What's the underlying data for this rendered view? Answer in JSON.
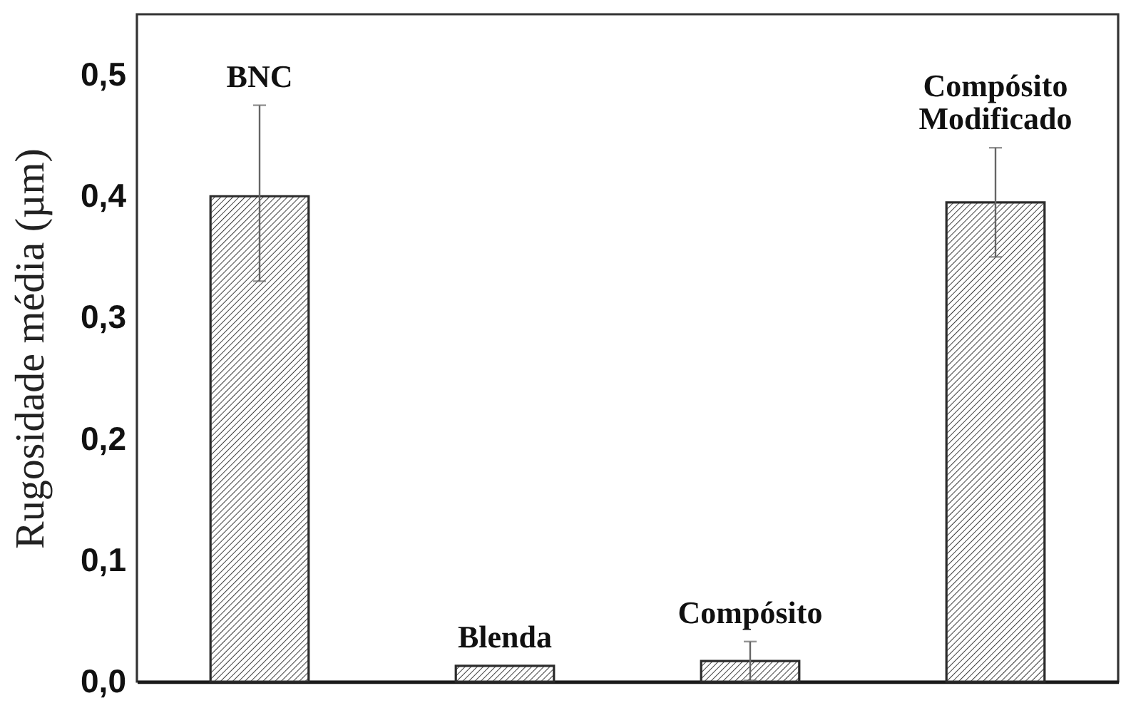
{
  "chart_data": {
    "type": "bar",
    "categories": [
      "BNC",
      "Blenda",
      "Compósito",
      "Compósito Modificado"
    ],
    "values": [
      0.4,
      0.013,
      0.017,
      0.395
    ],
    "errors": [
      [
        0.33,
        0.475
      ],
      null,
      0.016,
      [
        0.35,
        0.44
      ]
    ],
    "color": "#2b2b2b",
    "ylabel": "Rugosidade média (µm)",
    "ylim": [
      0,
      0.55
    ],
    "yticks": [
      {
        "value": 0,
        "label": "0,0"
      },
      {
        "value": 0.1,
        "label": "0,1"
      },
      {
        "value": 0.2,
        "label": "0,2"
      },
      {
        "value": 0.3,
        "label": "0,3"
      },
      {
        "value": 0.4,
        "label": "0,4"
      },
      {
        "value": 0.5,
        "label": "0,5"
      }
    ],
    "tick_labels": "y"
  }
}
